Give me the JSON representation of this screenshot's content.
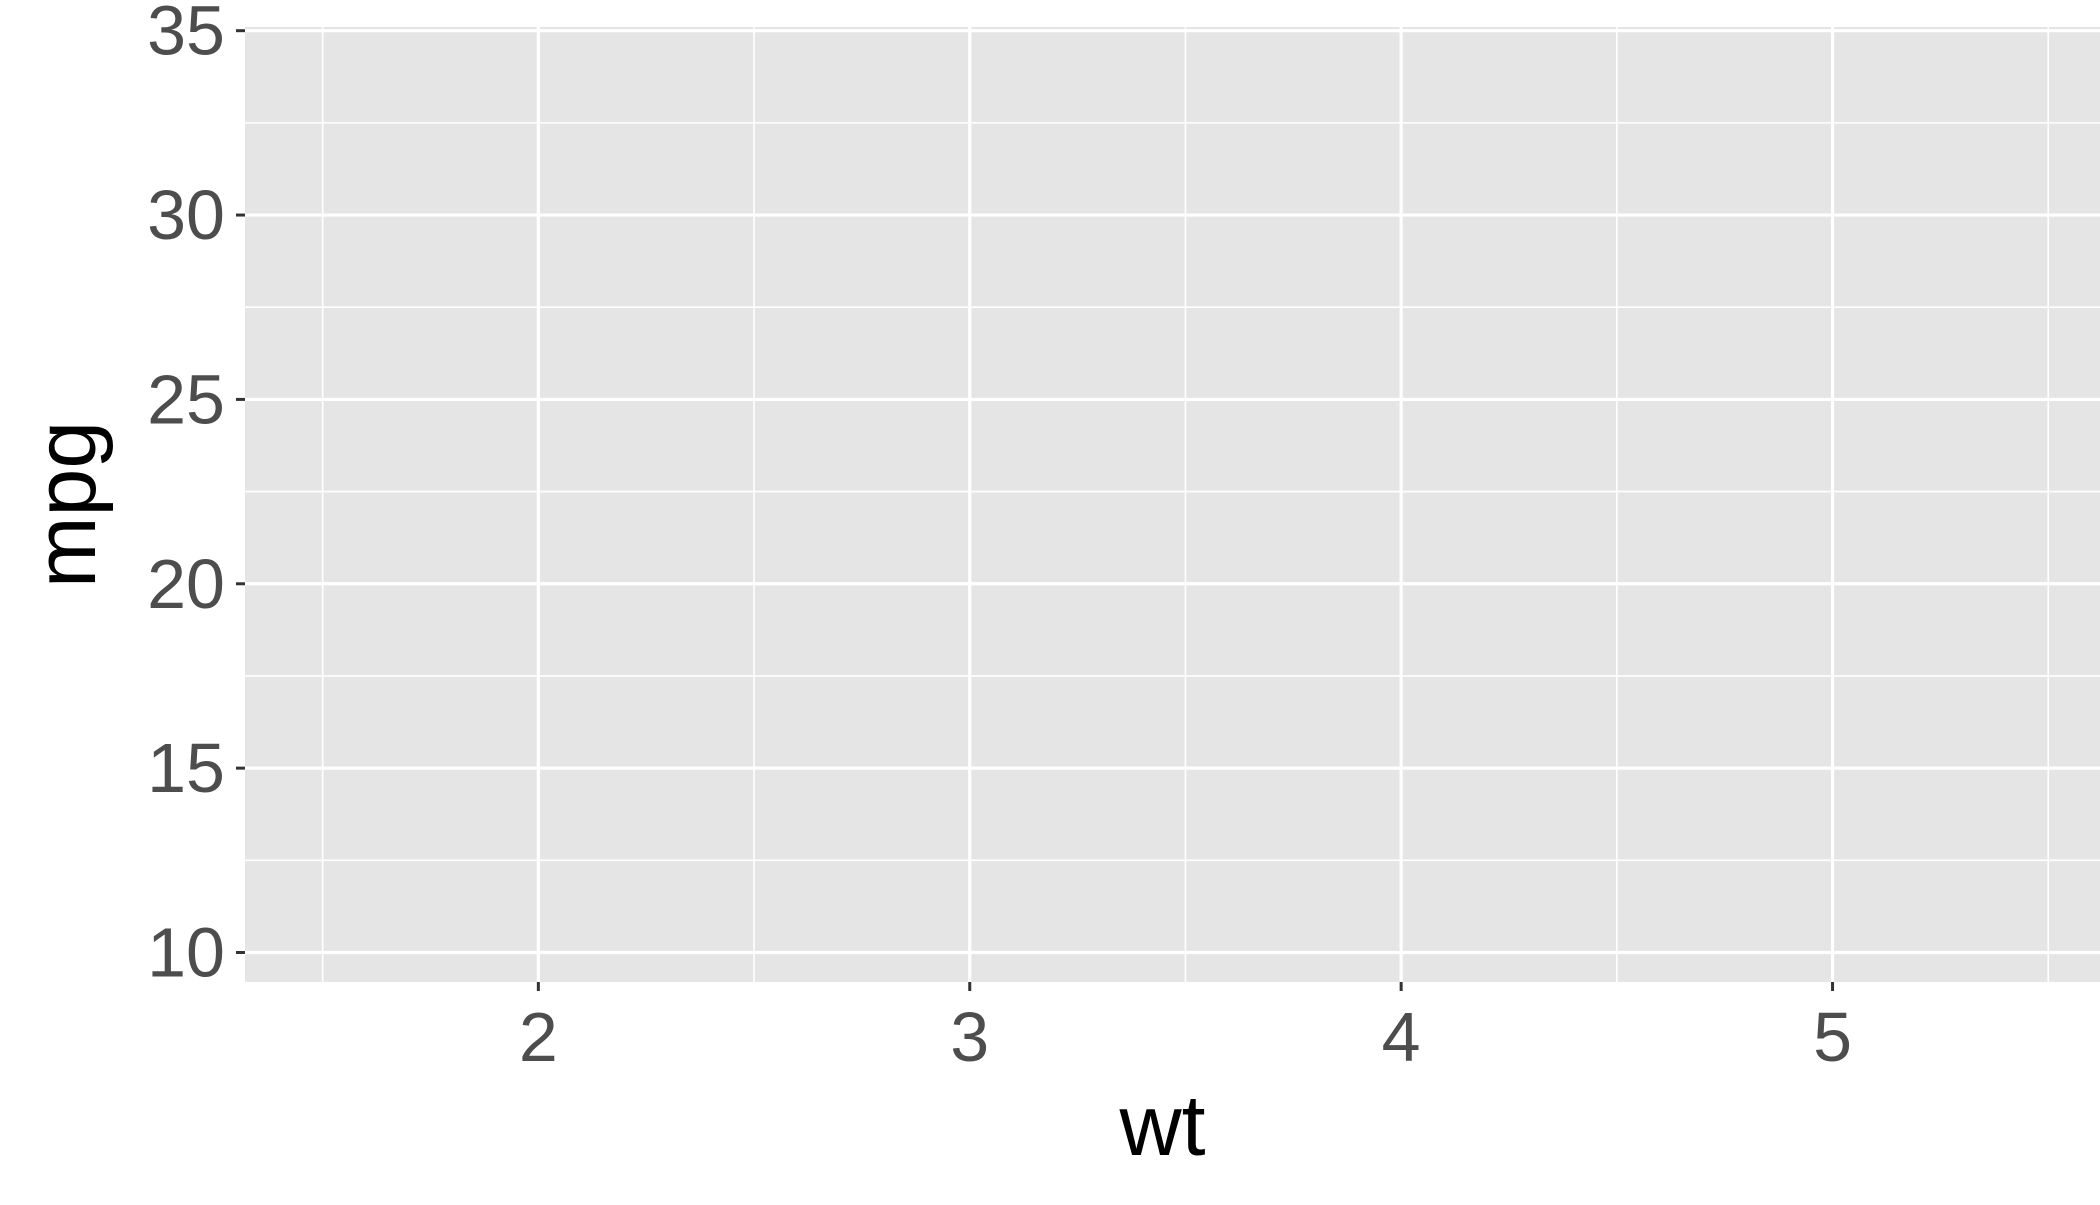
{
  "chart_data": {
    "type": "scatter",
    "title": "",
    "xlabel": "wt",
    "ylabel": "mpg",
    "x_ticks": [
      2,
      3,
      4,
      5
    ],
    "y_ticks": [
      10,
      15,
      20,
      25,
      30,
      35
    ],
    "xlim": [
      1.32,
      5.62
    ],
    "ylim": [
      9.2,
      35.1
    ],
    "grid": true,
    "points": [],
    "panel_color": "#E5E5E5",
    "grid_color": "#FFFFFF",
    "tick_label_color": "#4D4D4D",
    "axis_title_color": "#000000"
  }
}
